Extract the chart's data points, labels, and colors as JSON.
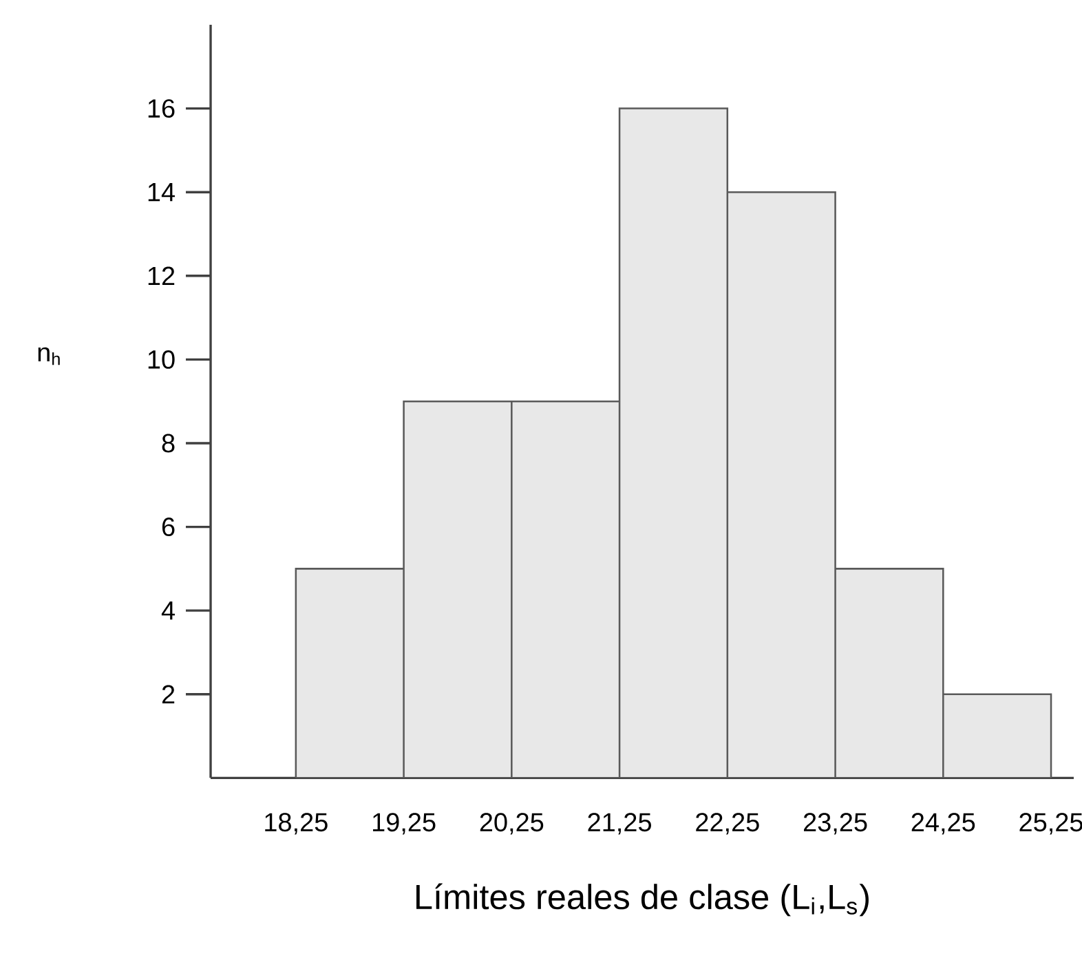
{
  "chart_data": {
    "type": "histogram",
    "xlabel": "Límites reales de clase (L$_{i}$,L$_{s}$)",
    "ylabel": "n$_{h}$",
    "bins": [
      18.25,
      19.25,
      20.25,
      21.25,
      22.25,
      23.25,
      24.25,
      25.25
    ],
    "values": [
      5,
      9,
      9,
      16,
      14,
      5,
      2
    ],
    "color": "#e8e8e8",
    "xlim": [
      17.46,
      25.46
    ],
    "ylim": [
      0,
      18
    ],
    "xticks": [
      {
        "value": 18.25,
        "label": "18,25"
      },
      {
        "value": 19.25,
        "label": "19,25"
      },
      {
        "value": 20.25,
        "label": "20,25"
      },
      {
        "value": 21.25,
        "label": "21,25"
      },
      {
        "value": 22.25,
        "label": "22,25"
      },
      {
        "value": 23.25,
        "label": "23,25"
      },
      {
        "value": 24.25,
        "label": "24,25"
      },
      {
        "value": 25.25,
        "label": "25,25"
      }
    ],
    "yticks": [
      2,
      4,
      6,
      8,
      10,
      12,
      14,
      16
    ],
    "grid": false
  }
}
